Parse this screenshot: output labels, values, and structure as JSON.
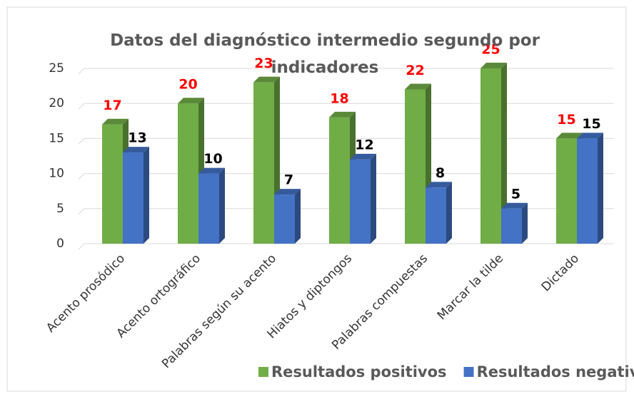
{
  "chart_data": {
    "type": "bar3d",
    "title": "Datos del diagnóstico intermedio segundo por indicadores",
    "categories": [
      "Acento prosódico",
      "Acento ortográfico",
      "Palabras según su acento",
      "Hiatos y diptongos",
      "Palabras compuestas",
      "Marcar la tilde",
      "Dictado"
    ],
    "series": [
      {
        "name": "Resultados positivos",
        "color": "#70ad47",
        "label_color": "#ff0000",
        "values": [
          17,
          20,
          23,
          18,
          22,
          25,
          15
        ]
      },
      {
        "name": "Resultados negativos",
        "color": "#4472c4",
        "label_color": "#000000",
        "values": [
          13,
          10,
          7,
          12,
          8,
          5,
          15
        ]
      }
    ],
    "ylim": [
      0,
      25
    ],
    "yticks": [
      0,
      5,
      10,
      15,
      20,
      25
    ],
    "grid": true,
    "legend": "bottom"
  }
}
